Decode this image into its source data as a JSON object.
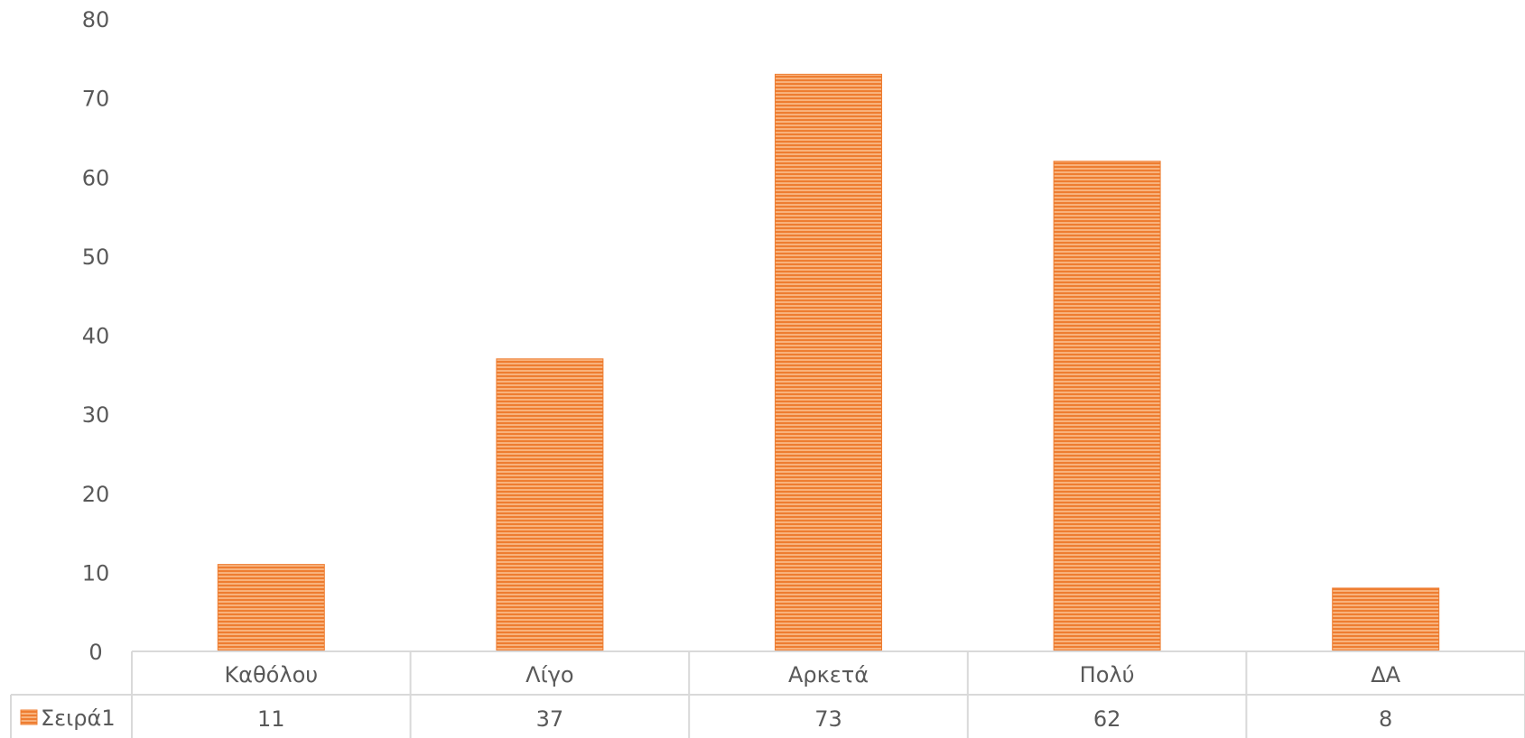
{
  "chart_data": {
    "type": "bar",
    "categories": [
      "Καθόλου",
      "Λίγο",
      "Αρκετά",
      "Πολύ",
      "ΔΑ"
    ],
    "series": [
      {
        "name": "Σειρά1",
        "values": [
          11,
          37,
          73,
          62,
          8
        ]
      }
    ],
    "ylim": [
      0,
      80
    ],
    "yticks": [
      0,
      10,
      20,
      30,
      40,
      50,
      60,
      70,
      80
    ],
    "grid": false,
    "legend": "data-table",
    "data_table": true,
    "colors": {
      "bar": "#f4a261",
      "bar_stripe": "#ee7d31",
      "axis": "#d9d9d9",
      "text": "#595959"
    }
  }
}
